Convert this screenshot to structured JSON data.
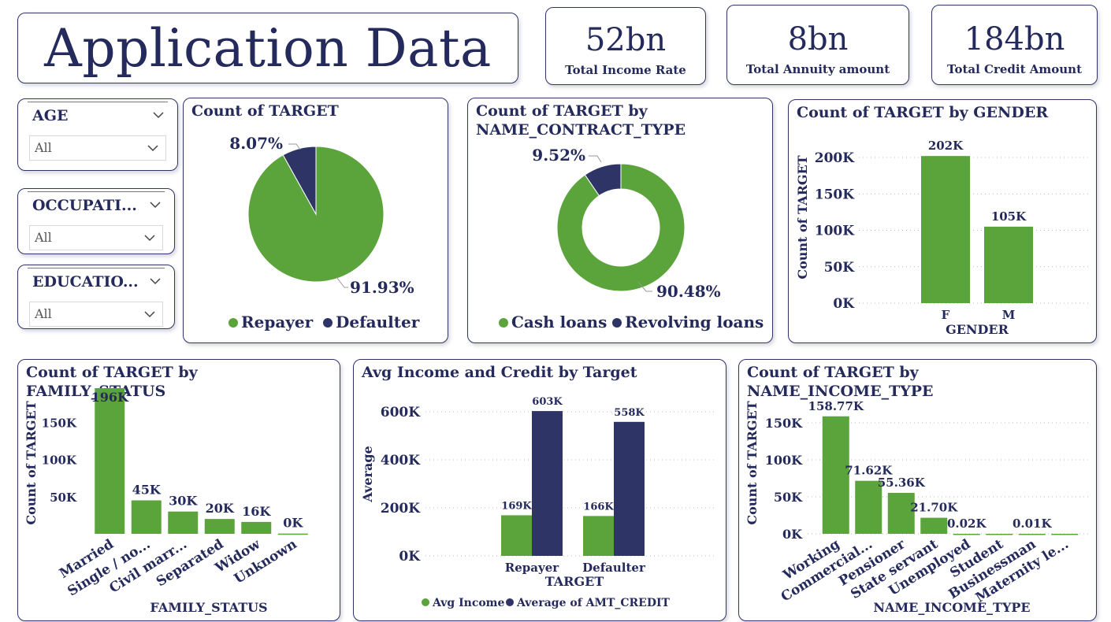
{
  "title": "Application Data",
  "kpis": [
    {
      "value": "52bn",
      "label": "Total Income Rate"
    },
    {
      "value": "8bn",
      "label": "Total Annuity amount"
    },
    {
      "value": "184bn",
      "label": "Total Credit Amount"
    }
  ],
  "slicers": [
    {
      "name": "AGE",
      "value": "All"
    },
    {
      "name": "OCCUPATI...",
      "value": "All"
    },
    {
      "name": "EDUCATIO...",
      "value": "All"
    }
  ],
  "colors": {
    "green": "#5ba33b",
    "navy": "#2e3466",
    "text": "#252a5c"
  },
  "chart_data": [
    {
      "id": "target",
      "type": "pie",
      "title": "Count of TARGET",
      "slices": [
        {
          "label": "Repayer",
          "pct": 91.93,
          "display": "91.93%",
          "color": "#5ba33b"
        },
        {
          "label": "Defaulter",
          "pct": 8.07,
          "display": "8.07%",
          "color": "#2e3466"
        }
      ],
      "legend": [
        "Repayer",
        "Defaulter"
      ],
      "legend_position": "bottom"
    },
    {
      "id": "contract",
      "type": "pie",
      "donut": true,
      "title_lines": [
        "Count of TARGET by",
        "NAME_CONTRACT_TYPE"
      ],
      "slices": [
        {
          "label": "Cash loans",
          "pct": 90.48,
          "display": "90.48%",
          "color": "#5ba33b"
        },
        {
          "label": "Revolving loans",
          "pct": 9.52,
          "display": "9.52%",
          "color": "#2e3466"
        }
      ],
      "legend": [
        "Cash loans",
        "Revolving loans"
      ],
      "legend_position": "bottom"
    },
    {
      "id": "gender",
      "type": "bar",
      "title": "Count of TARGET by GENDER",
      "categories": [
        "F",
        "M"
      ],
      "values": [
        202,
        105
      ],
      "data_labels": [
        "202K",
        "105K"
      ],
      "ylim": [
        0,
        220
      ],
      "yticks": [
        0,
        50,
        100,
        150,
        200
      ],
      "ytick_labels": [
        "0K",
        "50K",
        "100K",
        "150K",
        "200K"
      ],
      "xlabel": "GENDER",
      "ylabel": "Count of TARGET",
      "grid": true
    },
    {
      "id": "family",
      "type": "bar",
      "title": "Count of TARGET by FAMILY_STATUS",
      "categories": [
        "Married",
        "Single / no...",
        "Civil marr...",
        "Separated",
        "Widow",
        "Unknown"
      ],
      "values": [
        196,
        45,
        30,
        20,
        16,
        0.3
      ],
      "data_labels": [
        "196K",
        "45K",
        "30K",
        "20K",
        "16K",
        "0K"
      ],
      "ylim": [
        0,
        196
      ],
      "yticks": [
        50,
        100,
        150
      ],
      "ytick_labels": [
        "50K",
        "100K",
        "150K"
      ],
      "xlabel": "FAMILY_STATUS",
      "ylabel": "Count of TARGET",
      "grid": false
    },
    {
      "id": "income_credit",
      "type": "bar",
      "title": "Avg Income and Credit by Target",
      "categories": [
        "Repayer",
        "Defaulter"
      ],
      "series": [
        {
          "name": "Avg Income",
          "values": [
            169,
            166
          ],
          "data_labels": [
            "169K",
            "166K"
          ],
          "color": "#5ba33b"
        },
        {
          "name": "Average of AMT_CREDIT",
          "values": [
            603,
            558
          ],
          "data_labels": [
            "603K",
            "558K"
          ],
          "color": "#2e3466"
        }
      ],
      "ylim": [
        0,
        660
      ],
      "yticks": [
        0,
        200,
        400,
        600
      ],
      "ytick_labels": [
        "0K",
        "200K",
        "400K",
        "600K"
      ],
      "xlabel": "TARGET",
      "ylabel": "Average",
      "legend_position": "bottom",
      "grid": true
    },
    {
      "id": "income_type",
      "type": "bar",
      "title": "Count of TARGET by NAME_INCOME_TYPE",
      "categories": [
        "Working",
        "Commercial...",
        "Pensioner",
        "State servant",
        "Unemployed",
        "Student",
        "Businessman",
        "Maternity le..."
      ],
      "values": [
        158.77,
        71.62,
        55.36,
        21.7,
        0.02,
        0.02,
        0.01,
        0.01
      ],
      "data_labels": [
        "158.77K",
        "71.62K",
        "55.36K",
        "21.70K",
        "0.02K",
        "",
        "0.01K",
        ""
      ],
      "ylim": [
        0,
        170
      ],
      "yticks": [
        0,
        50,
        100,
        150
      ],
      "ytick_labels": [
        "0K",
        "50K",
        "100K",
        "150K"
      ],
      "xlabel": "NAME_INCOME_TYPE",
      "ylabel": "Count of TARGET",
      "grid": true
    }
  ]
}
